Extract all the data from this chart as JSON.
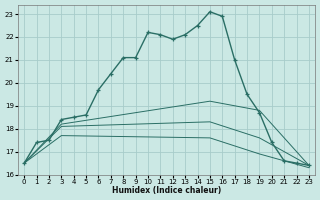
{
  "xlabel": "Humidex (Indice chaleur)",
  "xlim": [
    -0.5,
    23.5
  ],
  "ylim": [
    16,
    23.4
  ],
  "yticks": [
    16,
    17,
    18,
    19,
    20,
    21,
    22,
    23
  ],
  "xticks": [
    0,
    1,
    2,
    3,
    4,
    5,
    6,
    7,
    8,
    9,
    10,
    11,
    12,
    13,
    14,
    15,
    16,
    17,
    18,
    19,
    20,
    21,
    22,
    23
  ],
  "bg_color": "#cbe8e4",
  "grid_color": "#a8ccca",
  "line_color": "#2a6e65",
  "series1_x": [
    0,
    1,
    2,
    3,
    4,
    5,
    6,
    7,
    8,
    9,
    10,
    11,
    12,
    13,
    14,
    15,
    16,
    17,
    18,
    19,
    20,
    21,
    22,
    23
  ],
  "series1_y": [
    16.5,
    17.4,
    17.5,
    18.4,
    18.5,
    18.6,
    19.7,
    20.4,
    21.1,
    21.1,
    22.2,
    22.1,
    21.9,
    22.1,
    22.5,
    23.1,
    22.9,
    21.0,
    19.5,
    18.7,
    17.4,
    16.6,
    16.5,
    16.4
  ],
  "series2_x": [
    0,
    3,
    15,
    19,
    23
  ],
  "series2_y": [
    16.5,
    18.2,
    19.2,
    18.8,
    16.4
  ],
  "series3_x": [
    0,
    3,
    15,
    19,
    23
  ],
  "series3_y": [
    16.5,
    18.1,
    18.3,
    17.6,
    16.4
  ],
  "series4_x": [
    0,
    3,
    15,
    19,
    23
  ],
  "series4_y": [
    16.5,
    17.7,
    17.6,
    16.9,
    16.3
  ],
  "xlabel_fontsize": 5.5,
  "tick_fontsize": 5.0
}
